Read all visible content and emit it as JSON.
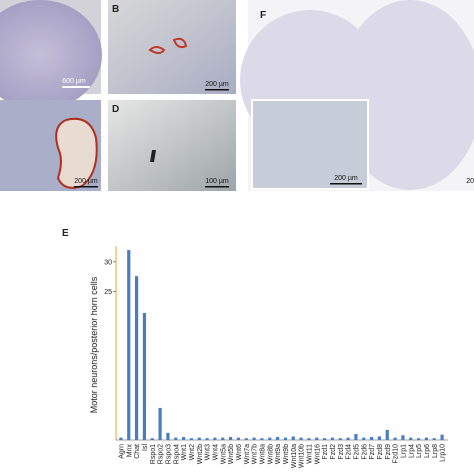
{
  "panels": {
    "b": "B",
    "d": "D",
    "e": "E",
    "f": "F"
  },
  "scale_bars": {
    "a": "600 µm",
    "b": "200 µm",
    "c": "200 µm",
    "d": "100 µm",
    "f_inset": "200 µm",
    "f": "20"
  },
  "chart_data": {
    "type": "bar",
    "y_label": "Motor neurons/posterior horn cells",
    "categories": [
      "Agrn",
      "Mnx",
      "Chat",
      "Isl",
      "Rspo1",
      "Rspo2",
      "Rspo3",
      "Rspo4",
      "Wnt1",
      "Wnt2",
      "Wnt2b",
      "Wnt3",
      "Wnt4",
      "Wnt5a",
      "Wnt5b",
      "Wnt6",
      "Wnt7a",
      "Wnt7b",
      "Wnt8a",
      "Wnt8b",
      "Wnt9a",
      "Wnt9b",
      "Wnt10a",
      "Wnt10b",
      "Wnt11",
      "Wnt16",
      "Fzd1",
      "Fzd2",
      "Fzd3",
      "Fzd4",
      "Fzd5",
      "Fzd6",
      "Fzd7",
      "Fzd8",
      "Fzd9",
      "Fzd10",
      "Lrp1",
      "Lrp4",
      "Lrp5",
      "Lrp6",
      "Lrp8",
      "Lrp10"
    ],
    "values": [
      0.4,
      32,
      27.6,
      21.4,
      0.3,
      5.4,
      1.2,
      0.4,
      0.5,
      0.3,
      0.4,
      0.3,
      0.4,
      0.4,
      0.5,
      0.4,
      0.3,
      0.4,
      0.3,
      0.4,
      0.5,
      0.4,
      0.6,
      0.4,
      0.3,
      0.4,
      0.3,
      0.4,
      0.3,
      0.4,
      1,
      0.4,
      0.5,
      0.6,
      1.7,
      0.4,
      0.8,
      0.4,
      0.3,
      0.4,
      0.3,
      0.9
    ],
    "color": "#4a7cc0",
    "ylim": [
      0,
      32
    ],
    "yticks": [
      25,
      30
    ]
  }
}
